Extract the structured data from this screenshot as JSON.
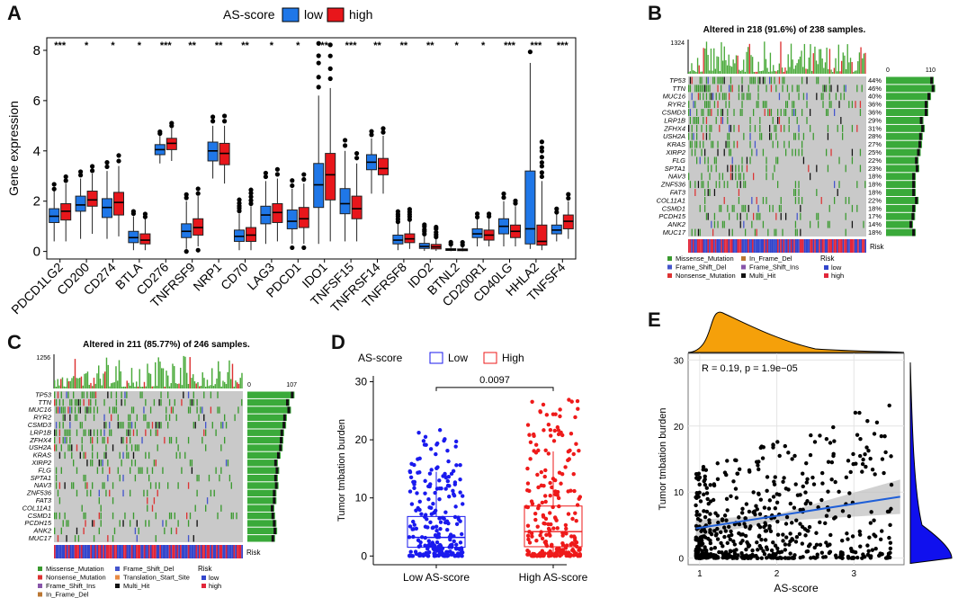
{
  "panels": {
    "A": "A",
    "B": "B",
    "C": "C",
    "D": "D",
    "E": "E"
  },
  "chart_data": [
    {
      "id": "A",
      "type": "box",
      "title": "",
      "ylabel": "Gene expression",
      "ylim": [
        -0.3,
        8.5
      ],
      "yticks": [
        0,
        2,
        4,
        6,
        8
      ],
      "legend": {
        "title": "AS-score",
        "entries": [
          "low",
          "high"
        ]
      },
      "colors": {
        "low": "#1f77e8",
        "high": "#e8161b"
      },
      "series": [
        {
          "name": "low",
          "stats": [
            [
              0.4,
              1.15,
              1.4,
              1.7,
              2.4
            ],
            [
              0.5,
              1.6,
              1.85,
              2.2,
              2.9
            ],
            [
              0.5,
              1.35,
              1.75,
              2.1,
              3.2
            ],
            [
              0.05,
              0.35,
              0.55,
              0.8,
              1.4
            ],
            [
              3.5,
              3.85,
              4.05,
              4.25,
              4.6
            ],
            [
              0.1,
              0.55,
              0.8,
              1.1,
              2.0
            ],
            [
              2.9,
              3.6,
              4.0,
              4.35,
              5.0
            ],
            [
              0.05,
              0.4,
              0.6,
              0.85,
              1.5
            ],
            [
              0.3,
              1.1,
              1.45,
              1.8,
              2.8
            ],
            [
              0.3,
              0.9,
              1.2,
              1.65,
              2.5
            ],
            [
              0.3,
              1.75,
              2.65,
              3.5,
              6.2
            ],
            [
              0.4,
              1.5,
              1.9,
              2.5,
              4.0
            ],
            [
              2.3,
              3.25,
              3.55,
              3.85,
              4.5
            ],
            [
              0.05,
              0.3,
              0.45,
              0.65,
              1.1
            ],
            [
              0.02,
              0.12,
              0.2,
              0.32,
              0.6
            ],
            [
              0.01,
              0.04,
              0.07,
              0.11,
              0.2
            ],
            [
              0.2,
              0.55,
              0.7,
              0.9,
              1.3
            ],
            [
              0.2,
              0.7,
              1.0,
              1.3,
              2.0
            ],
            [
              0.1,
              0.3,
              0.9,
              3.2,
              7.5
            ],
            [
              0.4,
              0.7,
              0.85,
              1.05,
              1.5
            ]
          ]
        },
        {
          "name": "high",
          "stats": [
            [
              0.4,
              1.25,
              1.6,
              1.9,
              2.7
            ],
            [
              0.7,
              1.8,
              2.05,
              2.4,
              3.1
            ],
            [
              0.6,
              1.45,
              1.95,
              2.35,
              3.4
            ],
            [
              0.05,
              0.3,
              0.45,
              0.7,
              1.3
            ],
            [
              3.6,
              4.05,
              4.3,
              4.5,
              4.9
            ],
            [
              0.2,
              0.65,
              0.95,
              1.3,
              2.2
            ],
            [
              2.7,
              3.45,
              3.9,
              4.3,
              5.0
            ],
            [
              0.05,
              0.4,
              0.65,
              0.95,
              1.8
            ],
            [
              0.4,
              1.15,
              1.55,
              1.9,
              2.9
            ],
            [
              0.3,
              0.95,
              1.3,
              1.75,
              2.7
            ],
            [
              0.4,
              2.05,
              3.05,
              3.9,
              6.5
            ],
            [
              0.4,
              1.3,
              1.7,
              2.2,
              3.5
            ],
            [
              2.3,
              3.05,
              3.3,
              3.7,
              4.6
            ],
            [
              0.1,
              0.35,
              0.5,
              0.7,
              1.2
            ],
            [
              0.02,
              0.1,
              0.18,
              0.28,
              0.5
            ],
            [
              0.01,
              0.03,
              0.06,
              0.1,
              0.18
            ],
            [
              0.2,
              0.45,
              0.65,
              0.85,
              1.3
            ],
            [
              0.2,
              0.55,
              0.8,
              1.05,
              1.8
            ],
            [
              0.05,
              0.25,
              0.4,
              1.05,
              2.8
            ],
            [
              0.5,
              0.9,
              1.2,
              1.45,
              2.0
            ]
          ]
        }
      ],
      "categories": [
        "PDCD1LG2",
        "CD200",
        "CD274",
        "BTLA",
        "CD276",
        "TNFRSF9",
        "NRP1",
        "CD70",
        "LAG3",
        "PDCD1",
        "IDO1",
        "TNFSF15",
        "TNFRSF14",
        "TNFRSF8",
        "IDO2",
        "BTNL2",
        "CD200R1",
        "CD40LG",
        "HHLA2",
        "TNFSF4"
      ],
      "significance": [
        "***",
        "*",
        "*",
        "*",
        "***",
        "**",
        "**",
        "**",
        "*",
        "*",
        "**",
        "***",
        "**",
        "**",
        "**",
        "*",
        "*",
        "***",
        "***",
        "***"
      ]
    },
    {
      "id": "B",
      "type": "heatmap",
      "title": "Altered in 218 (91.6%) of 238 samples.",
      "top_axis_max": "1324",
      "right_axis": [
        "0",
        "110"
      ],
      "genes": [
        "TP53",
        "TTN",
        "MUC16",
        "RYR2",
        "CSMD3",
        "LRP1B",
        "ZFHX4",
        "USH2A",
        "KRAS",
        "XIRP2",
        "FLG",
        "SPTA1",
        "NAV3",
        "ZNF536",
        "FAT3",
        "COL11A1",
        "CSMD1",
        "PCDH15",
        "ANK2",
        "MUC17"
      ],
      "percents": [
        "44%",
        "46%",
        "40%",
        "36%",
        "36%",
        "29%",
        "31%",
        "28%",
        "27%",
        "25%",
        "22%",
        "23%",
        "18%",
        "18%",
        "18%",
        "22%",
        "18%",
        "17%",
        "14%",
        "18%"
      ],
      "risk_label": "Risk",
      "legend_variants": [
        "Missense_Mutation",
        "Frame_Shift_Del",
        "Nonsense_Mutation",
        "In_Frame_Del",
        "Frame_Shift_Ins",
        "Multi_Hit"
      ],
      "legend_risk_title": "Risk",
      "legend_risk": [
        "low",
        "high"
      ]
    },
    {
      "id": "C",
      "type": "heatmap",
      "title": "Altered in 211 (85.77%) of 246 samples.",
      "top_axis_max": "1256",
      "right_axis": [
        "0",
        "107"
      ],
      "genes": [
        "TP53",
        "TTN",
        "MUC16",
        "RYR2",
        "CSMD3",
        "LRP1B",
        "ZFHX4",
        "USH2A",
        "KRAS",
        "XIRP2",
        "FLG",
        "SPTA1",
        "NAV3",
        "ZNF536",
        "FAT3",
        "COL11A1",
        "CSMD1",
        "PCDH15",
        "ANK2",
        "MUC17"
      ],
      "percents": [
        "43%",
        "36%",
        "38%",
        "32%",
        "31%",
        "28%",
        "27%",
        "26%",
        "23%",
        "19%",
        "21%",
        "19%",
        "20%",
        "17%",
        "17%",
        "14%",
        "15%",
        "17%",
        "18%",
        "15%"
      ],
      "risk_label": "Risk",
      "legend_variants": [
        "Missense_Mutation",
        "Nonsense_Mutation",
        "Frame_Shift_Ins",
        "In_Frame_Del",
        "Frame_Shift_Del",
        "Translation_Start_Site",
        "Multi_Hit"
      ],
      "legend_risk_title": "Risk",
      "legend_risk": [
        "low",
        "high"
      ]
    },
    {
      "id": "D",
      "type": "box",
      "legend": {
        "title": "AS-score",
        "entries": [
          "Low",
          "High"
        ]
      },
      "colors": {
        "Low": "#1a1aee",
        "High": "#ee1a1a"
      },
      "categories": [
        "Low AS-score",
        "High AS-score"
      ],
      "ylabel": "Tumor tmbation burden",
      "ylim": [
        -1.5,
        31
      ],
      "yticks": [
        0,
        10,
        20,
        30
      ],
      "stats": [
        [
          0,
          1.5,
          3.2,
          6.8,
          14.5
        ],
        [
          0,
          1.6,
          4.2,
          8.6,
          18.0
        ]
      ],
      "pvalue": "0.0097"
    },
    {
      "id": "E",
      "type": "scatter",
      "annotation": "R = 0.19, p = 1.9e−05",
      "xlabel": "AS-score",
      "ylabel": "Tumor tmbation burden",
      "xlim": [
        0.85,
        3.65
      ],
      "ylim": [
        -1,
        31
      ],
      "xticks": [
        1,
        2,
        3
      ],
      "yticks": [
        0,
        10,
        20,
        30
      ],
      "regression": {
        "x": [
          0.95,
          3.6
        ],
        "y": [
          4.5,
          9.3
        ]
      },
      "colors": {
        "points": "#000000",
        "line": "#1f5fd8",
        "top_density": "#f5a00a",
        "right_density": "#1010ee"
      }
    }
  ]
}
